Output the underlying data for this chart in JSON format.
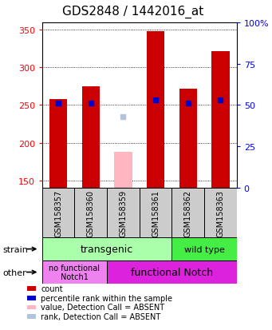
{
  "title": "GDS2848 / 1442016_at",
  "samples": [
    "GSM158357",
    "GSM158360",
    "GSM158359",
    "GSM158361",
    "GSM158362",
    "GSM158363"
  ],
  "bar_values": [
    258,
    275,
    null,
    348,
    272,
    322
  ],
  "absent_bar_values": [
    null,
    null,
    188,
    null,
    null,
    null
  ],
  "rank_values": [
    51,
    51,
    null,
    53,
    51,
    53
  ],
  "rank_absent_values": [
    null,
    null,
    43,
    null,
    null,
    null
  ],
  "ylim_left": [
    140,
    360
  ],
  "ylim_right": [
    0,
    100
  ],
  "right_ticks": [
    0,
    25,
    50,
    75,
    100
  ],
  "right_tick_labels": [
    "0",
    "25",
    "50",
    "75",
    "100%"
  ],
  "left_ticks": [
    150,
    200,
    250,
    300,
    350
  ],
  "legend_items": [
    {
      "color": "#cc0000",
      "label": "count"
    },
    {
      "color": "#0000cc",
      "label": "percentile rank within the sample"
    },
    {
      "color": "#ffb6c1",
      "label": "value, Detection Call = ABSENT"
    },
    {
      "color": "#b0c4de",
      "label": "rank, Detection Call = ABSENT"
    }
  ],
  "bar_width": 0.55,
  "plot_bg": "white",
  "title_fontsize": 11,
  "tick_fontsize": 8,
  "sample_fontsize": 7,
  "strain_transgenic_color": "#aaffaa",
  "strain_wildtype_color": "#44ee44",
  "other_nofunc_color": "#ee82ee",
  "other_func_color": "#dd22dd",
  "label_area_bg": "#cccccc",
  "fig_bg": "white"
}
